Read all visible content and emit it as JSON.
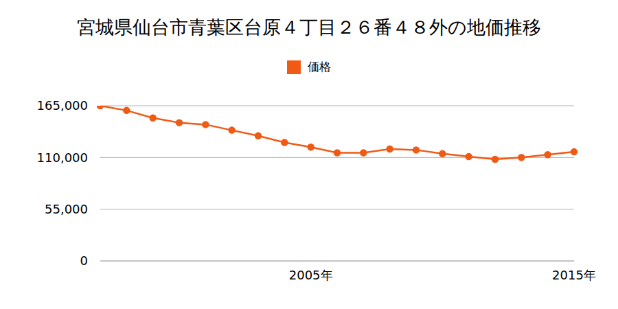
{
  "chart_data": {
    "type": "line",
    "title": "宮城県仙台市青葉区台原４丁目２６番４８外の地価推移",
    "categories": [
      null,
      null,
      null,
      null,
      null,
      null,
      null,
      null,
      "2005年",
      null,
      null,
      null,
      null,
      null,
      null,
      null,
      null,
      null,
      "2015年"
    ],
    "series": [
      {
        "name": "価格",
        "color": "#f05a14",
        "marker": "circle",
        "values": [
          165000,
          160000,
          152000,
          147000,
          145000,
          139000,
          133000,
          126000,
          121000,
          115000,
          115000,
          119000,
          118000,
          114000,
          111000,
          108000,
          110000,
          113000,
          116000
        ]
      }
    ],
    "ylim": [
      0,
      165000
    ],
    "yticks": [
      {
        "value": 0,
        "label": "0"
      },
      {
        "value": 55000,
        "label": "55,000"
      },
      {
        "value": 110000,
        "label": "110,000"
      },
      {
        "value": 165000,
        "label": "165,000"
      }
    ],
    "grid": true,
    "legend": "top"
  }
}
